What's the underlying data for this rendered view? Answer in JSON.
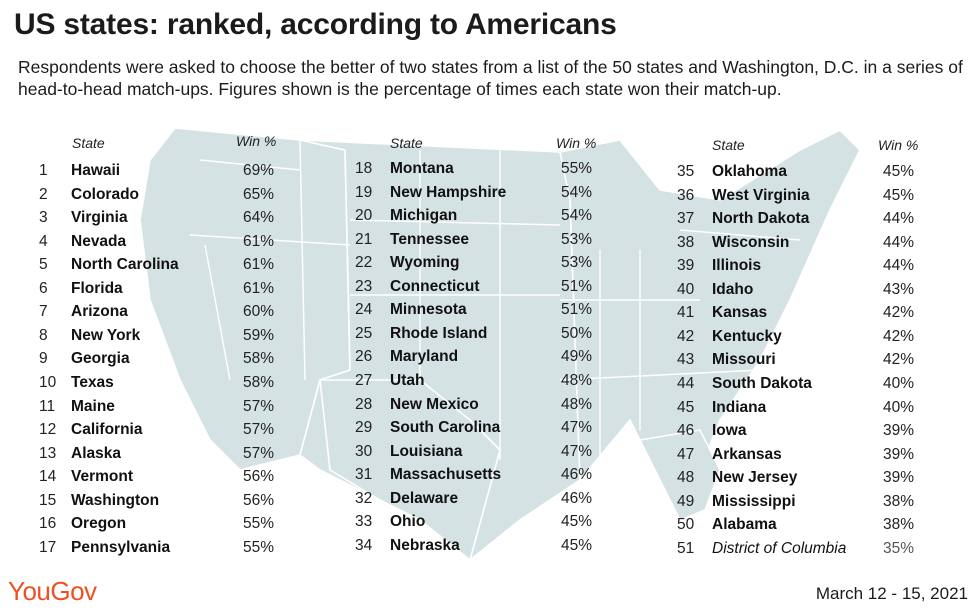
{
  "header": {
    "title": "US states: ranked, according to Americans",
    "subtitle": "Respondents were asked to choose the better of two states from a list of the 50 states and Washington, D.C. in a series of head-to-head match-ups. Figures shown is the percentage of times each state won their match-up."
  },
  "footer": {
    "logo": "YouGov",
    "date": "March 12 - 15, 2021"
  },
  "colors": {
    "map_fill": "#d5e2e4",
    "logo": "#f04f23"
  },
  "chart_data": {
    "type": "table",
    "columns": [
      "State",
      "Win %"
    ],
    "rows": [
      {
        "rank": "1",
        "state": "Hawaii",
        "win": "69%"
      },
      {
        "rank": "2",
        "state": "Colorado",
        "win": "65%"
      },
      {
        "rank": "3",
        "state": "Virginia",
        "win": "64%"
      },
      {
        "rank": "4",
        "state": "Nevada",
        "win": "61%"
      },
      {
        "rank": "5",
        "state": "North Carolina",
        "win": "61%"
      },
      {
        "rank": "6",
        "state": "Florida",
        "win": "61%"
      },
      {
        "rank": "7",
        "state": "Arizona",
        "win": "60%"
      },
      {
        "rank": "8",
        "state": "New York",
        "win": "59%"
      },
      {
        "rank": "9",
        "state": "Georgia",
        "win": "58%"
      },
      {
        "rank": "10",
        "state": "Texas",
        "win": "58%"
      },
      {
        "rank": "11",
        "state": "Maine",
        "win": "57%"
      },
      {
        "rank": "12",
        "state": "California",
        "win": "57%"
      },
      {
        "rank": "13",
        "state": "Alaska",
        "win": "57%"
      },
      {
        "rank": "14",
        "state": "Vermont",
        "win": "56%"
      },
      {
        "rank": "15",
        "state": "Washington",
        "win": "56%"
      },
      {
        "rank": "16",
        "state": "Oregon",
        "win": "55%"
      },
      {
        "rank": "17",
        "state": "Pennsylvania",
        "win": "55%"
      },
      {
        "rank": "18",
        "state": "Montana",
        "win": "55%"
      },
      {
        "rank": "19",
        "state": "New Hampshire",
        "win": "54%"
      },
      {
        "rank": "20",
        "state": "Michigan",
        "win": "54%"
      },
      {
        "rank": "21",
        "state": "Tennessee",
        "win": "53%"
      },
      {
        "rank": "22",
        "state": "Wyoming",
        "win": "53%"
      },
      {
        "rank": "23",
        "state": "Connecticut",
        "win": "51%"
      },
      {
        "rank": "24",
        "state": "Minnesota",
        "win": "51%"
      },
      {
        "rank": "25",
        "state": "Rhode Island",
        "win": "50%"
      },
      {
        "rank": "26",
        "state": "Maryland",
        "win": "49%"
      },
      {
        "rank": "27",
        "state": "Utah",
        "win": "48%"
      },
      {
        "rank": "28",
        "state": "New Mexico",
        "win": "48%"
      },
      {
        "rank": "29",
        "state": "South Carolina",
        "win": "47%"
      },
      {
        "rank": "30",
        "state": "Louisiana",
        "win": "47%"
      },
      {
        "rank": "31",
        "state": "Massachusetts",
        "win": "46%"
      },
      {
        "rank": "32",
        "state": "Delaware",
        "win": "46%"
      },
      {
        "rank": "33",
        "state": "Ohio",
        "win": "45%"
      },
      {
        "rank": "34",
        "state": "Nebraska",
        "win": "45%"
      },
      {
        "rank": "35",
        "state": "Oklahoma",
        "win": "45%"
      },
      {
        "rank": "36",
        "state": "West Virginia",
        "win": "45%"
      },
      {
        "rank": "37",
        "state": "North Dakota",
        "win": "44%"
      },
      {
        "rank": "38",
        "state": "Wisconsin",
        "win": "44%"
      },
      {
        "rank": "39",
        "state": "Illinois",
        "win": "44%"
      },
      {
        "rank": "40",
        "state": "Idaho",
        "win": "43%"
      },
      {
        "rank": "41",
        "state": "Kansas",
        "win": "42%"
      },
      {
        "rank": "42",
        "state": "Kentucky",
        "win": "42%"
      },
      {
        "rank": "43",
        "state": "Missouri",
        "win": "42%"
      },
      {
        "rank": "44",
        "state": "South Dakota",
        "win": "40%"
      },
      {
        "rank": "45",
        "state": "Indiana",
        "win": "40%"
      },
      {
        "rank": "46",
        "state": "Iowa",
        "win": "39%"
      },
      {
        "rank": "47",
        "state": "Arkansas",
        "win": "39%"
      },
      {
        "rank": "48",
        "state": "New Jersey",
        "win": "39%"
      },
      {
        "rank": "49",
        "state": "Mississippi",
        "win": "38%"
      },
      {
        "rank": "50",
        "state": "Alabama",
        "win": "38%"
      },
      {
        "rank": "51",
        "state": "District of Columbia",
        "win": "35%",
        "italic": true
      }
    ]
  }
}
